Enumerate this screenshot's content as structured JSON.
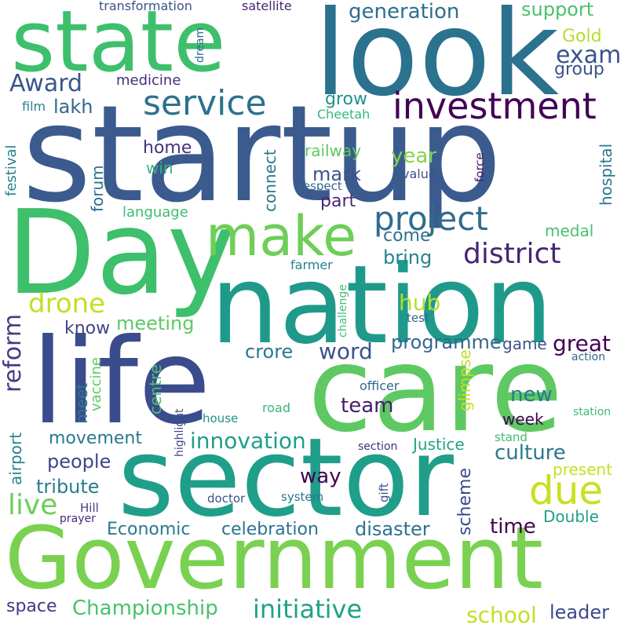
{
  "words": {
    "startup": {
      "text": "startup",
      "color": "#3b5b8e"
    },
    "day": {
      "text": "Day",
      "color": "#3ebf6c"
    },
    "nation": {
      "text": "nation",
      "color": "#1f9a8a"
    },
    "care": {
      "text": "care",
      "color": "#5ec962"
    },
    "life": {
      "text": "life",
      "color": "#3b4c8c"
    },
    "sector": {
      "text": "sector",
      "color": "#1f9e89"
    },
    "government": {
      "text": "Government",
      "color": "#7ad151"
    },
    "state": {
      "text": "state",
      "color": "#3ebf6c"
    },
    "look": {
      "text": "look",
      "color": "#2a728e"
    },
    "make": {
      "text": "make",
      "color": "#6ece58"
    },
    "investment": {
      "text": "investment",
      "color": "#440154"
    },
    "service": {
      "text": "service",
      "color": "#2c728e"
    },
    "project": {
      "text": "project",
      "color": "#2f6c8e"
    },
    "district": {
      "text": "district",
      "color": "#482475"
    },
    "due": {
      "text": "due",
      "color": "#c8e020"
    },
    "exam": {
      "text": "exam",
      "color": "#3b528b"
    },
    "generation": {
      "text": "generation",
      "color": "#2e6e8e"
    },
    "award": {
      "text": "Award",
      "color": "#39568c"
    },
    "lakh": {
      "text": "lakh",
      "color": "#31688e"
    },
    "medicine": {
      "text": "medicine",
      "color": "#472d7b"
    },
    "drone": {
      "text": "drone",
      "color": "#c2df23"
    },
    "reform": {
      "text": "reform",
      "color": "#443a83"
    },
    "meeting": {
      "text": "meeting",
      "color": "#5ec962"
    },
    "know": {
      "text": "know",
      "color": "#414487"
    },
    "crore": {
      "text": "crore",
      "color": "#2a788e"
    },
    "word": {
      "text": "word",
      "color": "#3b528b"
    },
    "programme": {
      "text": "programme",
      "color": "#31688e"
    },
    "game": {
      "text": "game",
      "color": "#3b528b"
    },
    "great": {
      "text": "great",
      "color": "#440154"
    },
    "hub": {
      "text": "hub",
      "color": "#b5de2b"
    },
    "team": {
      "text": "team",
      "color": "#481a6c"
    },
    "new": {
      "text": "new",
      "color": "#2a788e"
    },
    "week": {
      "text": "week",
      "color": "#440154"
    },
    "culture": {
      "text": "culture",
      "color": "#2a788e"
    },
    "innovation": {
      "text": "innovation",
      "color": "#1f9e89"
    },
    "movement": {
      "text": "movement",
      "color": "#2a788e"
    },
    "people": {
      "text": "people",
      "color": "#404688"
    },
    "tribute": {
      "text": "tribute",
      "color": "#287c8e"
    },
    "live": {
      "text": "live",
      "color": "#6ece58"
    },
    "way": {
      "text": "way",
      "color": "#440154"
    },
    "justice": {
      "text": "Justice",
      "color": "#20a486"
    },
    "economic": {
      "text": "Economic",
      "color": "#2a788e"
    },
    "celebration": {
      "text": "celebration",
      "color": "#2c728e"
    },
    "disaster": {
      "text": "disaster",
      "color": "#2c728e"
    },
    "time": {
      "text": "time",
      "color": "#440154"
    },
    "double": {
      "text": "Double",
      "color": "#1f9e89"
    },
    "present": {
      "text": "present",
      "color": "#c8e020"
    },
    "championship": {
      "text": "Championship",
      "color": "#4ac16d"
    },
    "initiative": {
      "text": "initiative",
      "color": "#20a386"
    },
    "space": {
      "text": "space",
      "color": "#443983"
    },
    "school": {
      "text": "school",
      "color": "#c2df23"
    },
    "leader": {
      "text": "leader",
      "color": "#3e4989"
    },
    "support": {
      "text": "support",
      "color": "#4ac16d"
    },
    "gold": {
      "text": "Gold",
      "color": "#b5de2b"
    },
    "group": {
      "text": "group",
      "color": "#3b528b"
    },
    "grow": {
      "text": "grow",
      "color": "#21918c"
    },
    "home": {
      "text": "home",
      "color": "#46337e"
    },
    "win": {
      "text": "win",
      "color": "#35b779"
    },
    "railway": {
      "text": "railway",
      "color": "#5ec962"
    },
    "year": {
      "text": "year",
      "color": "#84d44b"
    },
    "mark": {
      "text": "mark",
      "color": "#3b528b"
    },
    "part": {
      "text": "part",
      "color": "#482878"
    },
    "come": {
      "text": "come",
      "color": "#2c728e"
    },
    "bring": {
      "text": "bring",
      "color": "#26828e"
    },
    "medal": {
      "text": "medal",
      "color": "#4ac16d"
    },
    "language": {
      "text": "language",
      "color": "#3ebc73"
    },
    "cheetah": {
      "text": "Cheetah",
      "color": "#35b779"
    },
    "film": {
      "text": "film",
      "color": "#26828e"
    },
    "value": {
      "text": "value",
      "color": "#3b528b"
    },
    "respect": {
      "text": "respect",
      "color": "#31688e"
    },
    "transformation": {
      "text": "transformation",
      "color": "#3b528b"
    },
    "satellite": {
      "text": "satellite",
      "color": "#482475"
    },
    "farmer": {
      "text": "farmer",
      "color": "#26828e"
    },
    "test": {
      "text": "test",
      "color": "#31688e"
    },
    "officer": {
      "text": "officer",
      "color": "#31688e"
    },
    "action": {
      "text": "action",
      "color": "#31688e"
    },
    "road": {
      "text": "road",
      "color": "#35b779"
    },
    "house": {
      "text": "house",
      "color": "#21918c"
    },
    "station": {
      "text": "station",
      "color": "#3ebc73"
    },
    "stand": {
      "text": "stand",
      "color": "#3ebc73"
    },
    "section": {
      "text": "section",
      "color": "#472d7b"
    },
    "doctor": {
      "text": "doctor",
      "color": "#3b528b"
    },
    "system": {
      "text": "system",
      "color": "#2a788e"
    },
    "hill": {
      "text": "Hill",
      "color": "#433e85"
    },
    "prayer": {
      "text": "prayer",
      "color": "#482878"
    },
    "dream": {
      "text": "dream",
      "color": "#31688e"
    },
    "festival": {
      "text": "festival",
      "color": "#26828e"
    },
    "forum": {
      "text": "forum",
      "color": "#2c728e"
    },
    "connect": {
      "text": "connect",
      "color": "#2a788e"
    },
    "hospital": {
      "text": "hospital",
      "color": "#2a788e"
    },
    "force": {
      "text": "force",
      "color": "#481a6c"
    },
    "vaccine": {
      "text": "vaccine",
      "color": "#5ec962"
    },
    "meet": {
      "text": "meet",
      "color": "#2a788e"
    },
    "centre": {
      "text": "centre",
      "color": "#4ac16d"
    },
    "glimpse": {
      "text": "glimpse",
      "color": "#c2df23"
    },
    "scheme": {
      "text": "scheme",
      "color": "#3e4989"
    },
    "airport": {
      "text": "airport",
      "color": "#26828e"
    },
    "highlight": {
      "text": "highlight",
      "color": "#404688"
    },
    "challenge": {
      "text": "challenge",
      "color": "#3ebc73"
    },
    "gift": {
      "text": "gift",
      "color": "#3b528b"
    }
  }
}
